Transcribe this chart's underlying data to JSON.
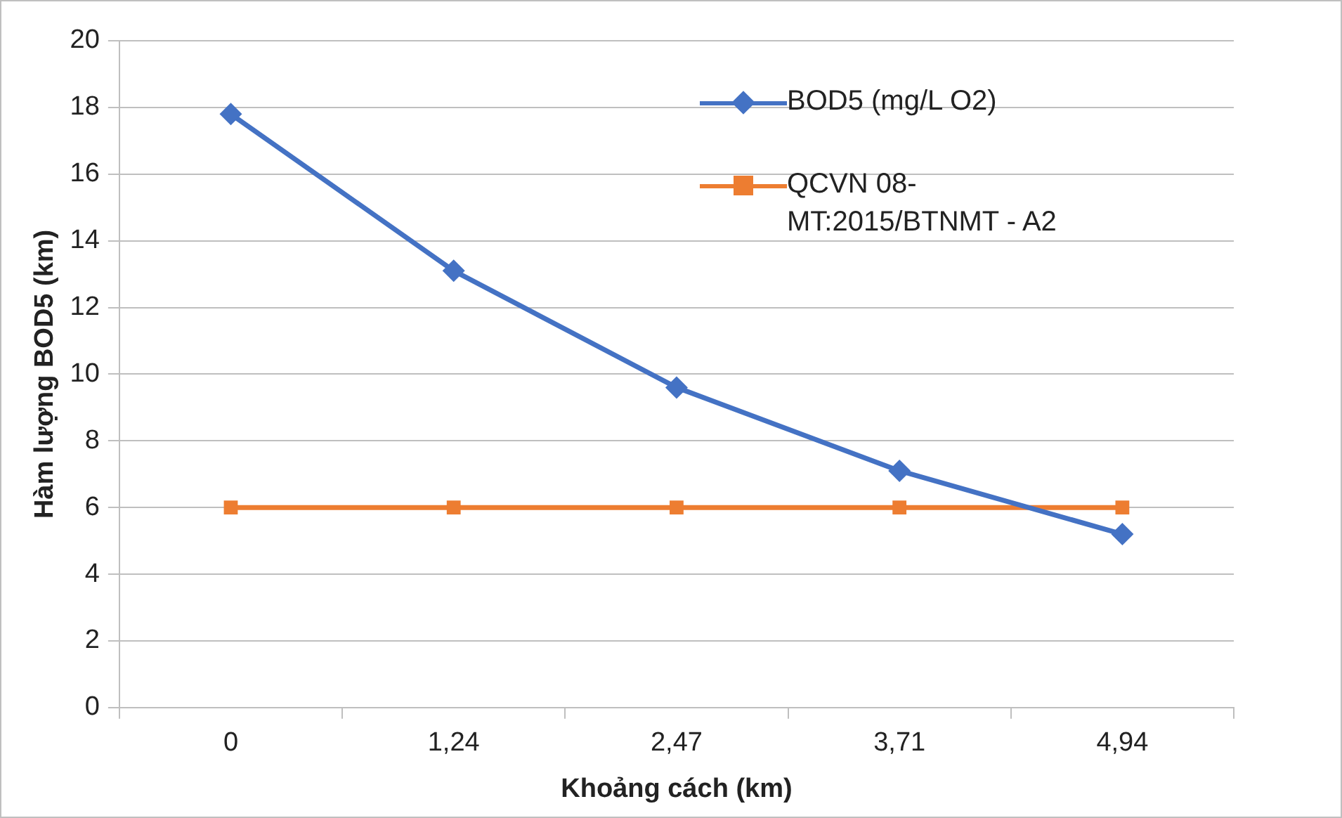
{
  "chart_data": {
    "type": "line",
    "xlabel": "Khoảng cách (km)",
    "ylabel": "Hàm lượng BOD5 (km)",
    "categories": [
      "0",
      "1,24",
      "2,47",
      "3,71",
      "4,94"
    ],
    "series": [
      {
        "name": "BOD5 (mg/L O2)",
        "color": "#4472c4",
        "marker": "diamond",
        "values": [
          17.8,
          13.1,
          9.6,
          7.1,
          5.2
        ]
      },
      {
        "name": "QCVN 08-MT:2015/BTNMT - A2",
        "color": "#ed7d31",
        "marker": "square",
        "values": [
          6,
          6,
          6,
          6,
          6
        ]
      }
    ],
    "ylim": [
      0,
      20
    ],
    "yticks": [
      0,
      2,
      4,
      6,
      8,
      10,
      12,
      14,
      16,
      18,
      20
    ],
    "grid": "y",
    "legend": "top right",
    "line_style": "solid"
  }
}
